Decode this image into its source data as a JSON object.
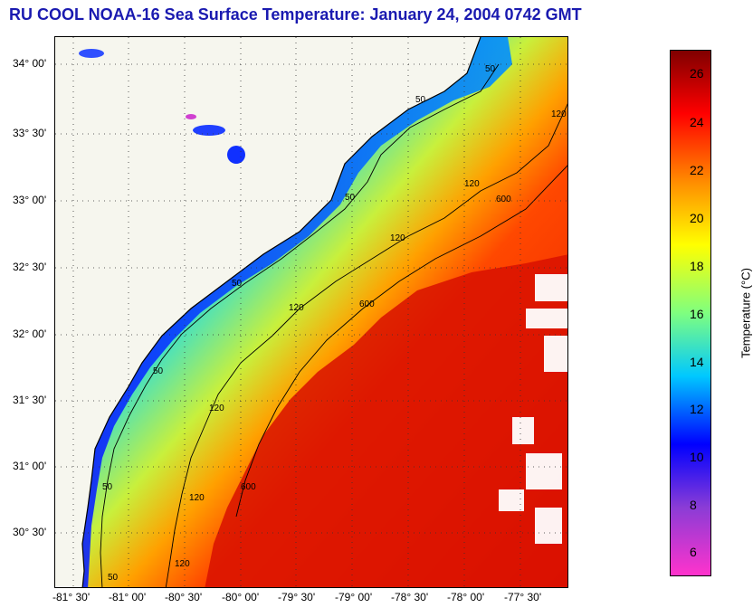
{
  "title": "RU COOL  NOAA-16  Sea Surface Temperature:  January 24, 2004 0742 GMT",
  "map": {
    "lat_labels": [
      "34° 00'",
      "33° 30'",
      "33° 00'",
      "32° 30'",
      "32° 00'",
      "31° 30'",
      "31° 00'",
      "30° 30'"
    ],
    "lon_labels": [
      "-81° 30'",
      "-81° 00'",
      "-80° 30'",
      "-80° 00'",
      "-79° 30'",
      "-79° 00'",
      "-78° 30'",
      "-78° 00'",
      "-77° 30'"
    ],
    "contour_labels": [
      "50",
      "120",
      "600"
    ]
  },
  "colorbar": {
    "label": "Temperature (°C)",
    "ticks": [
      "26",
      "24",
      "22",
      "20",
      "18",
      "16",
      "14",
      "12",
      "10",
      "8",
      "6"
    ],
    "colors": [
      "#ff33cc",
      "#8a3cd6",
      "#0000ff",
      "#00c8ff",
      "#7fff7f",
      "#ffff00",
      "#ff8c00",
      "#ff0000",
      "#800000"
    ]
  }
}
